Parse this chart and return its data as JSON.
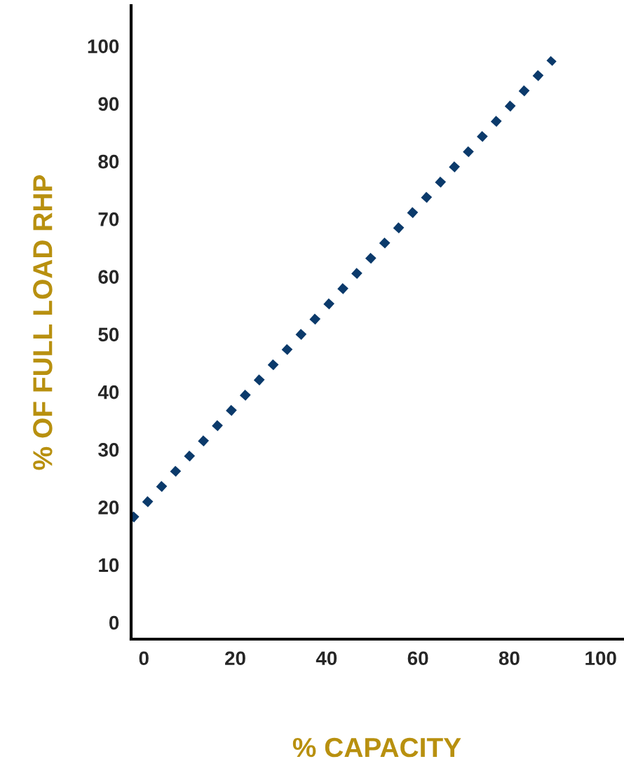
{
  "chart_data": {
    "type": "line",
    "xlabel": "% CAPACITY",
    "ylabel": "% OF FULL LOAD RHP",
    "x": [
      -2.8,
      89.7
    ],
    "series": [
      {
        "color": "#0b3a6b",
        "values": [
          17.8,
          97.8
        ]
      }
    ],
    "xlim": [
      -2.8,
      104.8
    ],
    "ylim": [
      -2.9,
      107
    ],
    "xticks": [
      0,
      20,
      40,
      60,
      80,
      100
    ],
    "yticks": [
      0,
      10,
      20,
      30,
      40,
      50,
      60,
      70,
      80,
      90,
      100
    ],
    "grid": false,
    "legend": false,
    "marker": "none",
    "line_style": "dotted"
  }
}
